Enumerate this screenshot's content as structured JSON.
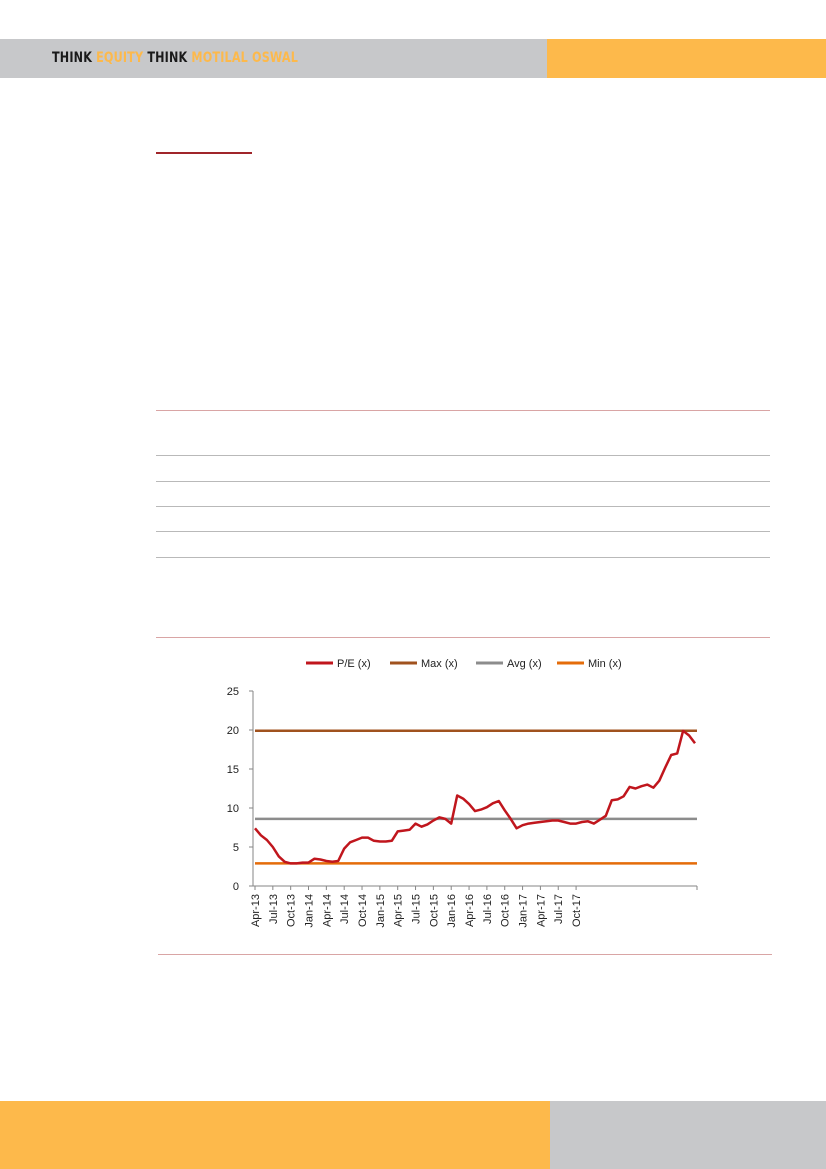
{
  "header": {
    "brand_think1": "THINK",
    "brand_equity": "EQUITY",
    "brand_think2": "THINK",
    "brand_motilal": "MOTILAL OSWAL"
  },
  "colors": {
    "gray": "#c7c8ca",
    "orange": "#fdb94b",
    "rule": "#c0504d"
  },
  "chart_data": {
    "type": "line",
    "title": "",
    "xlabel": "",
    "ylabel": "",
    "ylim": [
      0,
      25
    ],
    "yticks": [
      0,
      5,
      10,
      15,
      20,
      25
    ],
    "x_tick_labels": [
      "Apr-13",
      "Jul-13",
      "Oct-13",
      "Jan-14",
      "Apr-14",
      "Jul-14",
      "Oct-14",
      "Jan-15",
      "Apr-15",
      "Jul-15",
      "Oct-15",
      "Jan-16",
      "Apr-16",
      "Jul-16",
      "Oct-16",
      "Jan-17",
      "Apr-17",
      "Jul-17",
      "Oct-17"
    ],
    "legend_position": "top",
    "grid": false,
    "series": [
      {
        "name": "P/E (x)",
        "color": "#c0161d",
        "values": [
          7.4,
          6.5,
          5.9,
          5.0,
          3.8,
          3.1,
          2.9,
          2.9,
          3.0,
          3.0,
          3.5,
          3.4,
          3.2,
          3.1,
          3.2,
          4.8,
          5.6,
          5.9,
          6.2,
          6.2,
          5.8,
          5.7,
          5.7,
          5.8,
          7.0,
          7.1,
          7.2,
          8.0,
          7.6,
          7.9,
          8.4,
          8.8,
          8.6,
          8.0,
          11.6,
          11.2,
          10.5,
          9.6,
          9.8,
          10.1,
          10.6,
          10.9,
          9.7,
          8.6,
          7.4,
          7.8,
          8.0,
          8.1,
          8.2,
          8.3,
          8.4,
          8.4,
          8.2,
          8.0,
          8.0,
          8.2,
          8.3,
          8.0,
          8.5,
          9.0,
          11.0,
          11.1,
          11.5,
          12.7,
          12.5,
          12.8,
          13.0,
          12.6,
          13.5,
          15.2,
          16.8,
          17.0,
          19.9,
          19.3,
          18.3
        ]
      },
      {
        "name": "Max (x)",
        "color": "#a0521e",
        "values": [
          19.9
        ]
      },
      {
        "name": "Avg (x)",
        "color": "#8c8c8c",
        "values": [
          8.6
        ]
      },
      {
        "name": "Min (x)",
        "color": "#e46c0a",
        "values": [
          2.9
        ]
      }
    ]
  }
}
